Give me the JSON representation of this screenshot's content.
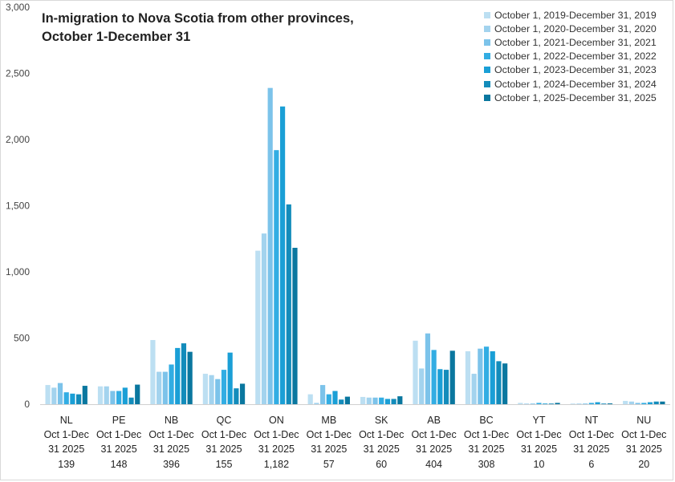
{
  "chart_data": {
    "type": "bar",
    "title_lines": [
      "In-migration to Nova Scotia from other provinces,",
      "October 1-December 31"
    ],
    "ylim": [
      0,
      3000
    ],
    "y_ticks": [
      "0",
      "500",
      "1,000",
      "1,500",
      "2,000",
      "2,500",
      "3,000"
    ],
    "y_tick_values": [
      0,
      500,
      1000,
      1500,
      2000,
      2500,
      3000
    ],
    "categories": [
      {
        "code": "NL",
        "period": "Oct 1-Dec",
        "period2": "31 2025",
        "value_label": "139"
      },
      {
        "code": "PE",
        "period": "Oct 1-Dec",
        "period2": "31 2025",
        "value_label": "148"
      },
      {
        "code": "NB",
        "period": "Oct 1-Dec",
        "period2": "31 2025",
        "value_label": "396"
      },
      {
        "code": "QC",
        "period": "Oct 1-Dec",
        "period2": "31 2025",
        "value_label": "155"
      },
      {
        "code": "ON",
        "period": "Oct 1-Dec",
        "period2": "31 2025",
        "value_label": "1,182"
      },
      {
        "code": "MB",
        "period": "Oct 1-Dec",
        "period2": "31 2025",
        "value_label": "57"
      },
      {
        "code": "SK",
        "period": "Oct 1-Dec",
        "period2": "31 2025",
        "value_label": "60"
      },
      {
        "code": "AB",
        "period": "Oct 1-Dec",
        "period2": "31 2025",
        "value_label": "404"
      },
      {
        "code": "BC",
        "period": "Oct 1-Dec",
        "period2": "31 2025",
        "value_label": "308"
      },
      {
        "code": "YT",
        "period": "Oct 1-Dec",
        "period2": "31 2025",
        "value_label": "10"
      },
      {
        "code": "NT",
        "period": "Oct 1-Dec",
        "period2": "31 2025",
        "value_label": "6"
      },
      {
        "code": "NU",
        "period": "Oct 1-Dec",
        "period2": "31 2025",
        "value_label": "20"
      }
    ],
    "series": [
      {
        "name": "October 1, 2019-December 31, 2019",
        "color": "#bcdff2",
        "values": [
          145,
          135,
          485,
          230,
          1160,
          75,
          55,
          480,
          400,
          10,
          5,
          25
        ]
      },
      {
        "name": "October 1, 2020-December 31, 2020",
        "color": "#a3d3ee",
        "values": [
          125,
          135,
          245,
          220,
          1290,
          10,
          50,
          270,
          230,
          5,
          5,
          20
        ]
      },
      {
        "name": "October 1, 2021-December 31, 2021",
        "color": "#7cc3ea",
        "values": [
          160,
          100,
          245,
          190,
          2390,
          145,
          50,
          535,
          420,
          5,
          5,
          10
        ]
      },
      {
        "name": "October 1, 2022-December 31, 2022",
        "color": "#32ade3",
        "values": [
          90,
          100,
          300,
          260,
          1920,
          75,
          50,
          410,
          435,
          10,
          10,
          10
        ]
      },
      {
        "name": "October 1, 2023-December 31, 2023",
        "color": "#1a9fd6",
        "values": [
          80,
          125,
          425,
          390,
          2250,
          100,
          40,
          265,
          400,
          5,
          15,
          15
        ]
      },
      {
        "name": "October 1, 2024-December 31, 2024",
        "color": "#138cbb",
        "values": [
          75,
          50,
          460,
          120,
          1510,
          35,
          40,
          260,
          325,
          5,
          5,
          20
        ]
      },
      {
        "name": "October 1, 2025-December 31, 2025",
        "color": "#0a779f",
        "values": [
          139,
          148,
          396,
          155,
          1182,
          57,
          60,
          404,
          308,
          10,
          6,
          20
        ]
      }
    ]
  }
}
